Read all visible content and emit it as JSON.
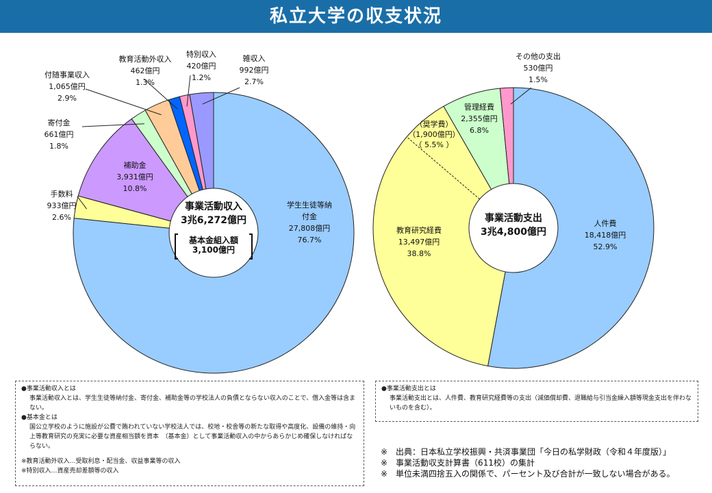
{
  "title": "私立大学の収支状況",
  "chart_data": [
    {
      "type": "pie",
      "style": "donut",
      "center_label": [
        "事業活動収入",
        "3兆6,272億円"
      ],
      "center_sub_label": [
        "基本金組入額",
        "3,100億円"
      ],
      "categories": [
        "学生生徒等納付金",
        "手数料",
        "補助金",
        "寄付金",
        "付随事業収入",
        "教育活動外収入",
        "特別収入",
        "雑収入"
      ],
      "values": [
        27808,
        933,
        3931,
        661,
        1065,
        462,
        420,
        992
      ],
      "percents": [
        76.7,
        2.6,
        10.8,
        1.8,
        2.9,
        1.3,
        1.2,
        2.7
      ],
      "labels": [
        {
          "lines": [
            "学生生徒等納",
            "付金",
            "27,808億円",
            "76.7%"
          ]
        },
        {
          "lines": [
            "手数料",
            "933億円",
            "2.6%"
          ]
        },
        {
          "lines": [
            "補助金",
            "3,931億円",
            "10.8%"
          ]
        },
        {
          "lines": [
            "寄付金",
            "661億円",
            "1.8%"
          ]
        },
        {
          "lines": [
            "付随事業収入",
            "1,065億円",
            "2.9%"
          ]
        },
        {
          "lines": [
            "教育活動外収入",
            "462億円",
            "1.3%"
          ]
        },
        {
          "lines": [
            "特別収入",
            "420億円",
            "1.2%"
          ]
        },
        {
          "lines": [
            "雑収入",
            "992億円",
            "2.7%"
          ]
        }
      ],
      "colors": [
        "#99ccff",
        "#ffff99",
        "#cc99ff",
        "#ccffcc",
        "#ffcc99",
        "#0066ff",
        "#ff99cc",
        "#9999ff"
      ]
    },
    {
      "type": "pie",
      "style": "donut",
      "center_label": [
        "事業活動支出",
        "3兆4,800億円"
      ],
      "categories": [
        "人件費",
        "教育研究経費",
        "管理経費",
        "その他の支出"
      ],
      "values": [
        18418,
        13497,
        2355,
        530
      ],
      "percents": [
        52.9,
        38.8,
        6.8,
        1.5
      ],
      "labels": [
        {
          "lines": [
            "人件費",
            "18,418億円",
            "52.9%"
          ]
        },
        {
          "lines": [
            "教育研究経費",
            "13,497億円",
            "38.8%"
          ]
        },
        {
          "lines": [
            "管理経費",
            "2,355億円",
            "6.8%"
          ]
        },
        {
          "lines": [
            "その他の支出",
            "530億円",
            "1.5%"
          ]
        }
      ],
      "colors": [
        "#99ccff",
        "#ffff99",
        "#ccffcc",
        "#ff99cc"
      ],
      "sub_item": {
        "lines": [
          "（奨学費）",
          "（1,900億円）",
          "（ 5.5% ）"
        ],
        "value": 1900,
        "percent": 5.5
      }
    }
  ],
  "definitions_left": [
    {
      "heading": "●事業活動収入とは",
      "body": "事業活動収入とは、学生生徒等納付金、寄付金、補助金等の学校法人の負債とならない収入のことで、借入金等は含まない。"
    },
    {
      "heading": "●基本金とは",
      "body": "国公立学校のように施設が公費で賄われていない学校法人では、校地・校舎等の新たな取得や高度化、設備の維持・向上等教育研究の充実に必要な資産相当額を資本　（基本金）として事業活動収入の中からあらかじめ確保しなければならない。"
    }
  ],
  "footnotes_left": [
    "※教育活動外収入…受取利息・配当金、収益事業等の収入",
    "※特別収入…資産売却差額等の収入"
  ],
  "definitions_right": [
    {
      "heading": "●事業活動支出とは",
      "body": "事業活動支出とは、人件費、教育研究経費等の支出（減価償却費、退職給与引当金繰入額等現金支出を伴わないものを含む）。"
    }
  ],
  "notes": [
    "※　出典：日本私立学校振興・共済事業団「今日の私学財政（令和４年度版）」",
    "※　事業活動収支計算書（611校）の集計",
    "※　単位未満四捨五入の関係で、パーセント及び合計が一致しない場合がある。"
  ]
}
